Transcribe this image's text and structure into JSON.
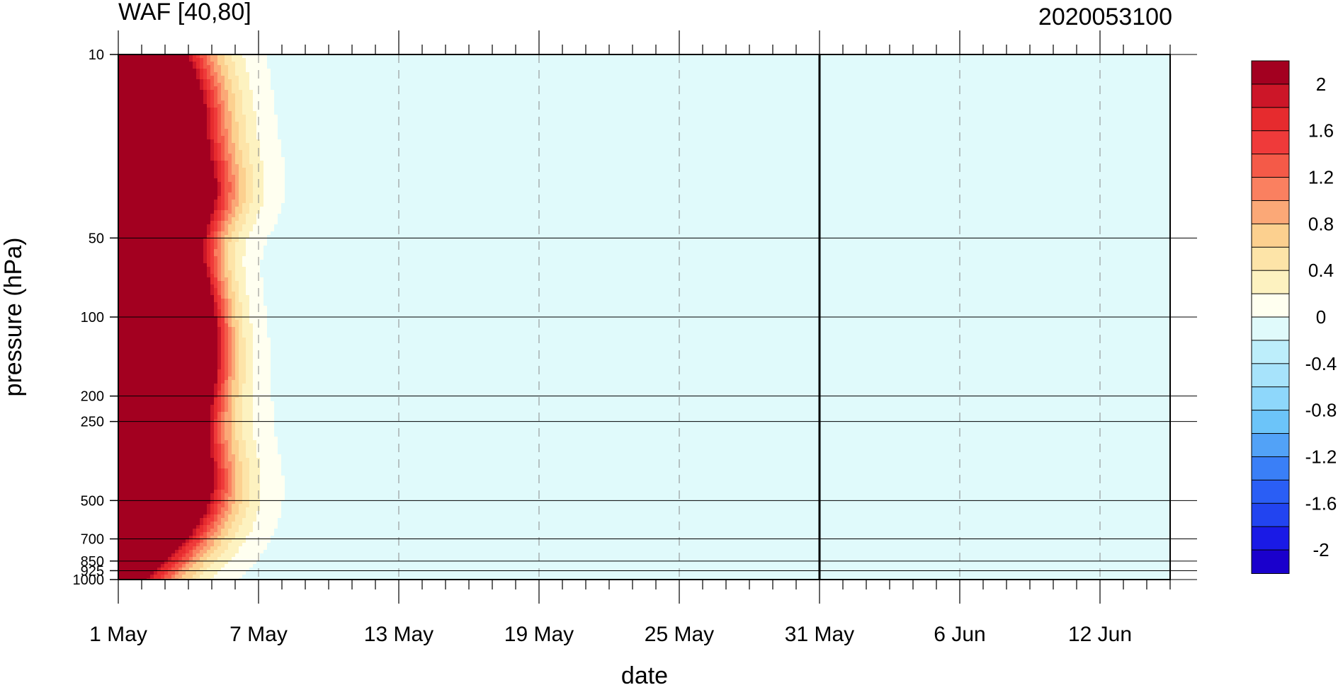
{
  "chart_data": {
    "type": "heatmap",
    "title_left": "WAF [40,80]",
    "title_right": "2020053100",
    "xlabel": "date",
    "ylabel": "pressure (hPa)",
    "x_ticks": [
      "1 May",
      "7 May",
      "13 May",
      "19 May",
      "25 May",
      "31 May",
      "6 Jun",
      "12 Jun"
    ],
    "y_ticks": [
      {
        "p": 10,
        "label": "10"
      },
      {
        "p": 50,
        "label": "50"
      },
      {
        "p": 100,
        "label": "100"
      },
      {
        "p": 200,
        "label": "200"
      },
      {
        "p": 250,
        "label": "250"
      },
      {
        "p": 500,
        "label": "500"
      },
      {
        "p": 700,
        "label": "700"
      },
      {
        "p": 850,
        "label": "850"
      },
      {
        "p": 925,
        "label": "925"
      },
      {
        "p": 1000,
        "label": "1000"
      }
    ],
    "y_scale": "log",
    "y_range": [
      1000,
      10
    ],
    "x_range": [
      "1 May",
      "15 Jun"
    ],
    "marked_date": "31 May",
    "colorbar": {
      "levels": [
        -2.2,
        -2.0,
        -1.8,
        -1.6,
        -1.4,
        -1.2,
        -1.0,
        -0.8,
        -0.6,
        -0.4,
        -0.2,
        0,
        0.2,
        0.4,
        0.6,
        0.8,
        1.0,
        1.2,
        1.4,
        1.6,
        1.8,
        2.0,
        2.2
      ],
      "colors": [
        "#1a00cc",
        "#1a1ae6",
        "#2244f0",
        "#2a5ef5",
        "#3a7ff7",
        "#52a2f7",
        "#6cc4f9",
        "#8ed7fb",
        "#a7e3fb",
        "#bdeefb",
        "#e0fafb",
        "#fffff0",
        "#fdf2c0",
        "#fde4a8",
        "#fcd08f",
        "#fba877",
        "#fa8060",
        "#f45a48",
        "#ef3a3a",
        "#e62b2e",
        "#cc1628",
        "#a30020"
      ],
      "tick_labels": [
        "2",
        "1.6",
        "1.2",
        "0.8",
        "0.4",
        "0",
        "-0.4",
        "-0.8",
        "-1.2",
        "-1.6",
        "-2"
      ]
    }
  }
}
